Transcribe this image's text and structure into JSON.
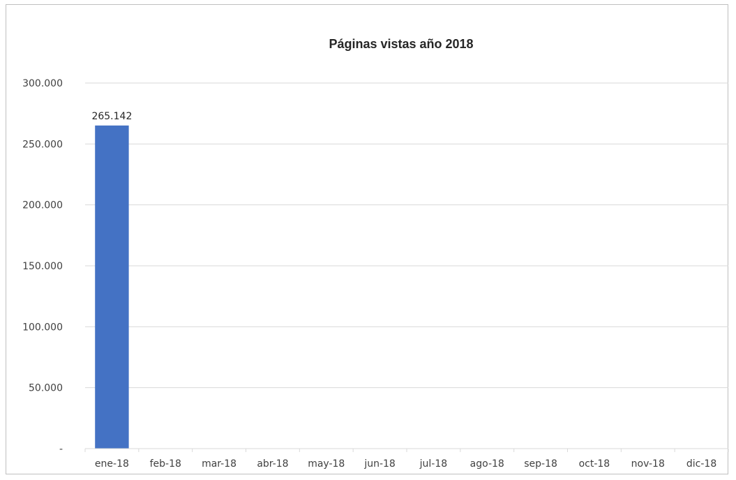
{
  "chart_data": {
    "type": "bar",
    "title": "Páginas vistas año 2018",
    "xlabel": "",
    "ylabel": "",
    "categories": [
      "ene-18",
      "feb-18",
      "mar-18",
      "abr-18",
      "may-18",
      "jun-18",
      "jul-18",
      "ago-18",
      "sep-18",
      "oct-18",
      "nov-18",
      "dic-18"
    ],
    "values": [
      265142,
      0,
      0,
      0,
      0,
      0,
      0,
      0,
      0,
      0,
      0,
      0
    ],
    "data_labels": [
      "265.142",
      "",
      "",
      "",
      "",
      "",
      "",
      "",
      "",
      "",
      "",
      ""
    ],
    "ylim": [
      0,
      300000
    ],
    "yticks": [
      0,
      50000,
      100000,
      150000,
      200000,
      250000,
      300000
    ],
    "ytick_labels": [
      "-",
      "50.000",
      "100.000",
      "150.000",
      "200.000",
      "250.000",
      "300.000"
    ],
    "grid": true,
    "legend": "none",
    "bar_color": "#4472c4"
  }
}
